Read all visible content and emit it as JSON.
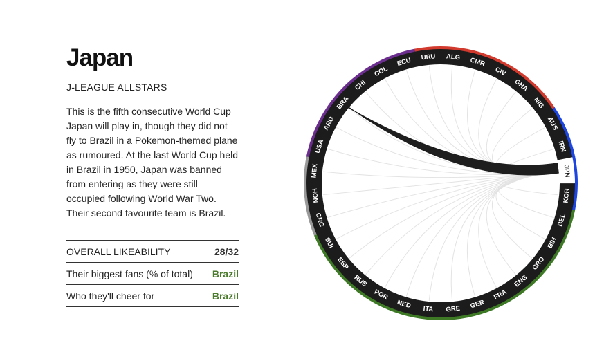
{
  "team": {
    "name": "Japan",
    "nickname": "J-LEAGUE ALLSTARS",
    "description": "This is the fifth consecutive World Cup Japan will play in, though they did not fly to Brazil in a Pokemon-themed plane as rumoured. At the last World Cup held in Brazil in 1950, Japan was banned from entering as they were still occupied following World War Two. Their second favourite team is Brazil."
  },
  "stats": [
    {
      "label": "OVERALL LIKEABILITY",
      "value": "28/32",
      "style": "dark"
    },
    {
      "label": "Their biggest fans (% of total)",
      "value": "Brazil",
      "style": "green"
    },
    {
      "label": "Who they'll cheer for",
      "value": "Brazil",
      "style": "green"
    }
  ],
  "wheel": {
    "selected": "JPN",
    "teams": [
      {
        "code": "URU",
        "group_color": "#d23a2e"
      },
      {
        "code": "ALG",
        "group_color": "#d23a2e"
      },
      {
        "code": "CMR",
        "group_color": "#d23a2e"
      },
      {
        "code": "CIV",
        "group_color": "#d23a2e"
      },
      {
        "code": "GHA",
        "group_color": "#d23a2e"
      },
      {
        "code": "NIG",
        "group_color": "#d23a2e"
      },
      {
        "code": "AUS",
        "group_color": "#1d45e0"
      },
      {
        "code": "IRN",
        "group_color": "#1d45e0"
      },
      {
        "code": "JPN",
        "group_color": "#1d45e0"
      },
      {
        "code": "KOR",
        "group_color": "#1d45e0"
      },
      {
        "code": "BEL",
        "group_color": "#3e7a26"
      },
      {
        "code": "BIH",
        "group_color": "#3e7a26"
      },
      {
        "code": "CRO",
        "group_color": "#3e7a26"
      },
      {
        "code": "ENG",
        "group_color": "#3e7a26"
      },
      {
        "code": "FRA",
        "group_color": "#3e7a26"
      },
      {
        "code": "GER",
        "group_color": "#3e7a26"
      },
      {
        "code": "GRE",
        "group_color": "#3e7a26"
      },
      {
        "code": "ITA",
        "group_color": "#3e7a26"
      },
      {
        "code": "NED",
        "group_color": "#3e7a26"
      },
      {
        "code": "POR",
        "group_color": "#3e7a26"
      },
      {
        "code": "RUS",
        "group_color": "#3e7a26"
      },
      {
        "code": "ESP",
        "group_color": "#3e7a26"
      },
      {
        "code": "SUI",
        "group_color": "#3e7a26"
      },
      {
        "code": "CRC",
        "group_color": "#999999"
      },
      {
        "code": "HON",
        "group_color": "#999999"
      },
      {
        "code": "MEX",
        "group_color": "#999999"
      },
      {
        "code": "USA",
        "group_color": "#6b2e8f"
      },
      {
        "code": "ARG",
        "group_color": "#6b2e8f"
      },
      {
        "code": "BRA",
        "group_color": "#6b2e8f"
      },
      {
        "code": "CHI",
        "group_color": "#6b2e8f"
      },
      {
        "code": "COL",
        "group_color": "#6b2e8f"
      },
      {
        "code": "ECU",
        "group_color": "#6b2e8f"
      }
    ],
    "highlight_link": {
      "from": "JPN",
      "to": "BRA"
    }
  }
}
